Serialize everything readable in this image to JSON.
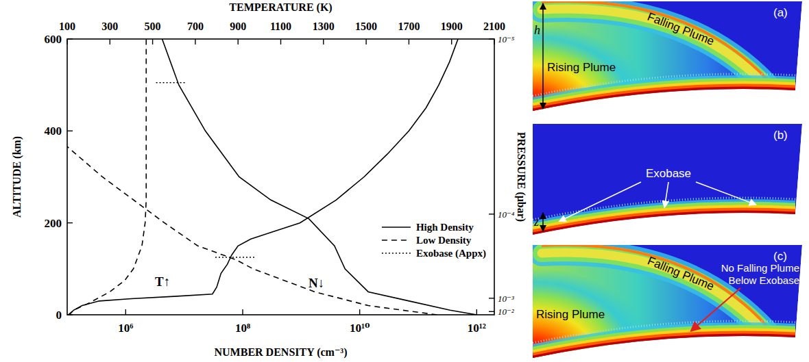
{
  "chart_data": {
    "type": "line",
    "x_label": "NUMBER DENSITY (cm⁻³)",
    "x2_label": "TEMPERATURE (K)",
    "y_label": "ALTITUDE (km)",
    "y2_label": "PRESSURE (μbar)",
    "log": "x",
    "xlim": [
      100000.0,
      2000000000000.0
    ],
    "xticks": [
      {
        "value": 1000000.0,
        "label": "10⁶"
      },
      {
        "value": 100000000.0,
        "label": "10⁸"
      },
      {
        "value": 10000000000.0,
        "label": "10¹⁰"
      },
      {
        "value": 1000000000000.0,
        "label": "10¹²"
      }
    ],
    "x2lim": [
      100,
      2100
    ],
    "x2ticks": [
      100,
      300,
      500,
      700,
      900,
      1100,
      1300,
      1500,
      1700,
      1900,
      2100
    ],
    "ylim": [
      0,
      600
    ],
    "yticks": [
      0,
      200,
      400,
      600
    ],
    "y2lim": [
      0,
      600
    ],
    "y2ticks": [
      {
        "value": 600,
        "label": "10⁻⁵"
      },
      {
        "value": 219,
        "label": "10⁻⁴"
      },
      {
        "value": 36,
        "label": "10⁻³"
      },
      {
        "value": 7,
        "label": "10⁻²"
      }
    ],
    "legend": "lower right",
    "annotations": [
      "T↑",
      "N↓"
    ],
    "series": [
      {
        "name": "High Density",
        "axis": "x2",
        "color": "#000000",
        "line_style": "solid",
        "values": [
          0,
          10,
          20,
          30,
          35,
          40,
          45,
          60,
          90,
          110,
          130,
          150,
          165,
          180,
          200,
          250,
          300,
          350,
          400,
          450,
          500,
          550,
          600
        ],
        "x": [
          110,
          130,
          170,
          250,
          400,
          600,
          780,
          800,
          820,
          850,
          870,
          900,
          960,
          1060,
          1190,
          1360,
          1490,
          1600,
          1700,
          1780,
          1840,
          1890,
          1930
        ]
      },
      {
        "name": "High Density",
        "axis": "x",
        "color": "#000000",
        "line_style": "solid",
        "values": [
          0,
          10,
          30,
          50,
          100,
          150,
          209,
          250,
          300,
          400,
          500,
          600
        ],
        "x": [
          1000000000000.0,
          350000000000.0,
          70000000000.0,
          14000000000.0,
          5600000000.0,
          3700000000.0,
          1350000000.0,
          300000000.0,
          87000000.0,
          23000000.0,
          8100000.0,
          4200000.0
        ]
      },
      {
        "name": "Low Density",
        "axis": "x2",
        "color": "#000000",
        "line_style": "dashed",
        "values": [
          0,
          10,
          25,
          50,
          75,
          100,
          150,
          200,
          250,
          600
        ],
        "x": [
          105,
          130,
          200,
          300,
          370,
          410,
          450,
          465,
          470,
          470
        ]
      },
      {
        "name": "Low Density",
        "axis": "x",
        "color": "#000000",
        "line_style": "dashed",
        "values": [
          0,
          20,
          50,
          100,
          120,
          150,
          200,
          300,
          366
        ],
        "x": [
          210000000000.0,
          14000000000.0,
          1700000000.0,
          150000000.0,
          76000000.0,
          17000000.0,
          4600000.0,
          400000.0,
          100000.0
        ]
      },
      {
        "name": "Exobase (Appx)",
        "axis": "x",
        "color": "#000000",
        "line_style": "dotted",
        "values": [
          505,
          505,
          null,
          125,
          125
        ],
        "x": [
          3300000.0,
          11000000.0,
          null,
          34000000.0,
          160000000.0
        ]
      }
    ]
  },
  "panels": [
    {
      "label": "(a)",
      "type": "plume",
      "texts": [
        "Rising Plume",
        "Falling Plume"
      ],
      "dimension": "h"
    },
    {
      "label": "(b)",
      "type": "exobase",
      "texts": [
        "Exobase"
      ],
      "dimension": "z"
    },
    {
      "label": "(c)",
      "type": "plume-blocked",
      "texts": [
        "Rising Plume",
        "Falling Plume",
        "No Falling Plume Below Exobase"
      ]
    }
  ]
}
